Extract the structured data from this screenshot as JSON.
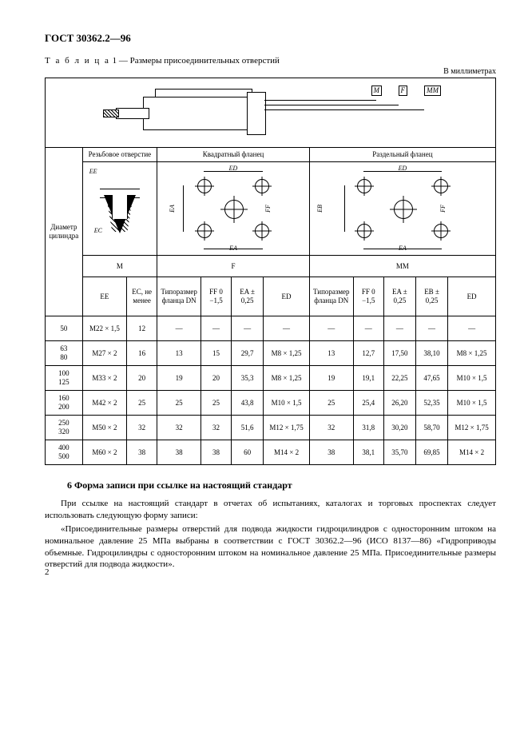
{
  "doc_number": "ГОСТ 30362.2—96",
  "table_caption_prefix": "Т а б л и ц а",
  "table_caption": "1 — Размеры присоединительных отверстий",
  "units": "В миллиметрах",
  "group_threaded": "Резьбовое отверстие",
  "group_square": "Квадратный фланец",
  "group_split": "Раздельный фланец",
  "letter_M": "М",
  "letter_F": "F",
  "letter_MM": "ММ",
  "callout_M": "M",
  "callout_F": "F",
  "callout_MM": "MM",
  "row_label": "Диаметр цилиндра",
  "hdr_EE": "EE",
  "hdr_EC": "EC, не менее",
  "hdr_DN": "Типоразмер фланца DN",
  "hdr_FF": "FF 0 −1,5",
  "hdr_EA": "EA ± 0,25",
  "hdr_EB": "EB ± 0,25",
  "hdr_ED": "ED",
  "dim_EE": "EE",
  "dim_EC": "EC",
  "dim_ED": "ED",
  "dim_EA": "EA",
  "dim_EB": "EB",
  "dim_FF": "FF",
  "rows": [
    {
      "d": "50",
      "ee": "M22 × 1,5",
      "ec": "12",
      "f_dn": "—",
      "f_ff": "—",
      "f_ea": "—",
      "f_ed": "—",
      "m_dn": "—",
      "m_ff": "—",
      "m_ea": "—",
      "m_eb": "—",
      "m_ed": "—"
    },
    {
      "d": "63\n80",
      "ee": "M27 × 2",
      "ec": "16",
      "f_dn": "13",
      "f_ff": "15",
      "f_ea": "29,7",
      "f_ed": "M8 × 1,25",
      "m_dn": "13",
      "m_ff": "12,7",
      "m_ea": "17,50",
      "m_eb": "38,10",
      "m_ed": "M8 × 1,25"
    },
    {
      "d": "100\n125",
      "ee": "M33 × 2",
      "ec": "20",
      "f_dn": "19",
      "f_ff": "20",
      "f_ea": "35,3",
      "f_ed": "M8 × 1,25",
      "m_dn": "19",
      "m_ff": "19,1",
      "m_ea": "22,25",
      "m_eb": "47,65",
      "m_ed": "M10 × 1,5"
    },
    {
      "d": "160\n200",
      "ee": "M42 × 2",
      "ec": "25",
      "f_dn": "25",
      "f_ff": "25",
      "f_ea": "43,8",
      "f_ed": "M10 × 1,5",
      "m_dn": "25",
      "m_ff": "25,4",
      "m_ea": "26,20",
      "m_eb": "52,35",
      "m_ed": "M10 × 1,5"
    },
    {
      "d": "250\n320",
      "ee": "M50 × 2",
      "ec": "32",
      "f_dn": "32",
      "f_ff": "32",
      "f_ea": "51,6",
      "f_ed": "M12 × 1,75",
      "m_dn": "32",
      "m_ff": "31,8",
      "m_ea": "30,20",
      "m_eb": "58,70",
      "m_ed": "M12 × 1,75"
    },
    {
      "d": "400\n500",
      "ee": "M60 × 2",
      "ec": "38",
      "f_dn": "38",
      "f_ff": "38",
      "f_ea": "60",
      "f_ed": "M14 × 2",
      "m_dn": "38",
      "m_ff": "38,1",
      "m_ea": "35,70",
      "m_eb": "69,85",
      "m_ed": "M14 × 2"
    }
  ],
  "section6_title": "6  Форма записи при ссылке на настоящий стандарт",
  "p1": "При ссылке на настоящий стандарт в отчетах об испытаниях, каталогах и торговых проспектах следует использовать следующую форму записи:",
  "p2": "«Присоединительные размеры отверстий для подвода жидкости гидроцилиндров с односторонним штоком на номинальное давление 25 МПа выбраны в соответствии с ГОСТ 30362.2—96 (ИСО 8137—86) «Гидроприводы объемные. Гидроцилиндры с односторонним штоком на номинальное давление 25 МПа. Присоединительные размеры отверстий для подвода жидкости».",
  "page_number": "2"
}
